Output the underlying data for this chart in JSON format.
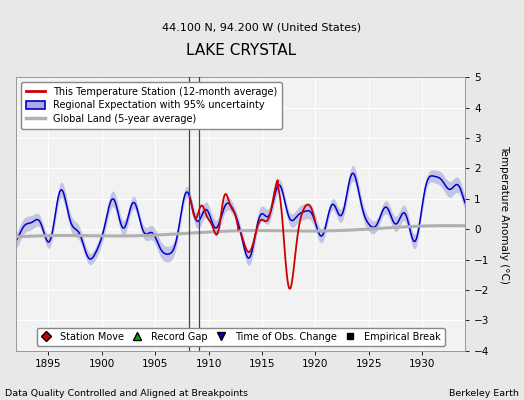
{
  "title": "LAKE CRYSTAL",
  "subtitle": "44.100 N, 94.200 W (United States)",
  "ylabel": "Temperature Anomaly (°C)",
  "xlabel_note": "Data Quality Controlled and Aligned at Breakpoints",
  "credit": "Berkeley Earth",
  "xlim": [
    1892,
    1934
  ],
  "ylim": [
    -4,
    5
  ],
  "yticks": [
    -4,
    -3,
    -2,
    -1,
    0,
    1,
    2,
    3,
    4,
    5
  ],
  "xticks": [
    1895,
    1900,
    1905,
    1910,
    1915,
    1920,
    1925,
    1930
  ],
  "bg_color": "#e8e8e8",
  "plot_bg_color": "#f2f2f2",
  "regional_line_color": "#0000cc",
  "regional_fill_color": "#aaaadd",
  "station_color": "#cc0000",
  "global_color": "#b0b0b0",
  "grid_color": "#ffffff",
  "empirical_break_years": [
    1908.2,
    1909.1
  ],
  "vertical_line_years": [
    1908.2,
    1909.1
  ],
  "legend_labels": [
    "This Temperature Station (12-month average)",
    "Regional Expectation with 95% uncertainty",
    "Global Land (5-year average)"
  ],
  "bottom_legend_labels": [
    "Station Move",
    "Record Gap",
    "Time of Obs. Change",
    "Empirical Break"
  ]
}
